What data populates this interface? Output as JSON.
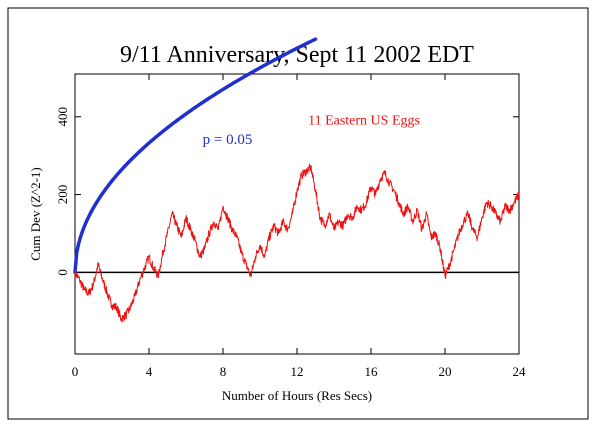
{
  "chart_data": {
    "type": "line",
    "title": "9/11 Anniversary, Sept 11 2002 EDT",
    "xlabel": "Number of Hours (Res Secs)",
    "ylabel": "Cum Dev (Z^2-1)",
    "xlim": [
      0,
      24
    ],
    "ylim": [
      -210,
      510
    ],
    "x_ticks": [
      0,
      4,
      8,
      12,
      16,
      20,
      24
    ],
    "y_ticks": [
      0,
      200,
      400
    ],
    "grid": false,
    "colors": {
      "frame": "#000000",
      "zero_line": "#000000",
      "probability_curve": "#1f2fd0",
      "data_series": "#ee1111"
    },
    "annotations": [
      {
        "text": "p = 0.05",
        "x": 6.9,
        "y": 330,
        "color": "#1f2fd0"
      },
      {
        "text": "11 Eastern US Eggs",
        "x": 12.6,
        "y": 380,
        "color": "#ee1111"
      }
    ],
    "series": [
      {
        "name": "11 Eastern US Eggs",
        "kind": "data",
        "x": [
          0,
          0.25,
          0.5,
          0.75,
          1.0,
          1.25,
          1.5,
          1.75,
          2.0,
          2.25,
          2.5,
          2.75,
          3.0,
          3.25,
          3.5,
          3.75,
          4.0,
          4.25,
          4.5,
          4.75,
          5.0,
          5.25,
          5.5,
          5.75,
          6.0,
          6.25,
          6.5,
          6.75,
          7.0,
          7.25,
          7.5,
          7.75,
          8.0,
          8.25,
          8.5,
          8.75,
          9.0,
          9.25,
          9.5,
          9.75,
          10.0,
          10.25,
          10.5,
          10.75,
          11.0,
          11.25,
          11.5,
          11.75,
          12.0,
          12.25,
          12.5,
          12.75,
          13.0,
          13.25,
          13.5,
          13.75,
          14.0,
          14.25,
          14.5,
          14.75,
          15.0,
          15.25,
          15.5,
          15.75,
          16.0,
          16.25,
          16.5,
          16.75,
          17.0,
          17.25,
          17.5,
          17.75,
          18.0,
          18.25,
          18.5,
          18.75,
          19.0,
          19.25,
          19.5,
          19.75,
          20.0,
          20.25,
          20.5,
          20.75,
          21.0,
          21.25,
          21.5,
          21.75,
          22.0,
          22.25,
          22.5,
          22.75,
          23.0,
          23.25,
          23.5,
          23.75,
          24.0
        ],
        "y": [
          0,
          -20,
          -45,
          -55,
          -30,
          20,
          -20,
          -55,
          -85,
          -90,
          -120,
          -110,
          -90,
          -60,
          -20,
          10,
          40,
          10,
          -10,
          50,
          100,
          150,
          120,
          90,
          140,
          110,
          80,
          40,
          60,
          100,
          130,
          110,
          170,
          140,
          110,
          90,
          50,
          20,
          -10,
          40,
          70,
          40,
          90,
          120,
          100,
          130,
          110,
          150,
          210,
          250,
          260,
          270,
          210,
          140,
          120,
          150,
          110,
          130,
          120,
          150,
          140,
          170,
          160,
          180,
          220,
          200,
          240,
          255,
          230,
          210,
          180,
          150,
          170,
          130,
          160,
          110,
          150,
          90,
          100,
          60,
          -10,
          20,
          60,
          100,
          130,
          150,
          110,
          90,
          140,
          180,
          170,
          150,
          130,
          170,
          160,
          180,
          200
        ]
      },
      {
        "name": "p = 0.05",
        "kind": "envelope",
        "formula": "1.96 * sqrt(2 * seconds)",
        "x_end": 13.0
      }
    ]
  }
}
